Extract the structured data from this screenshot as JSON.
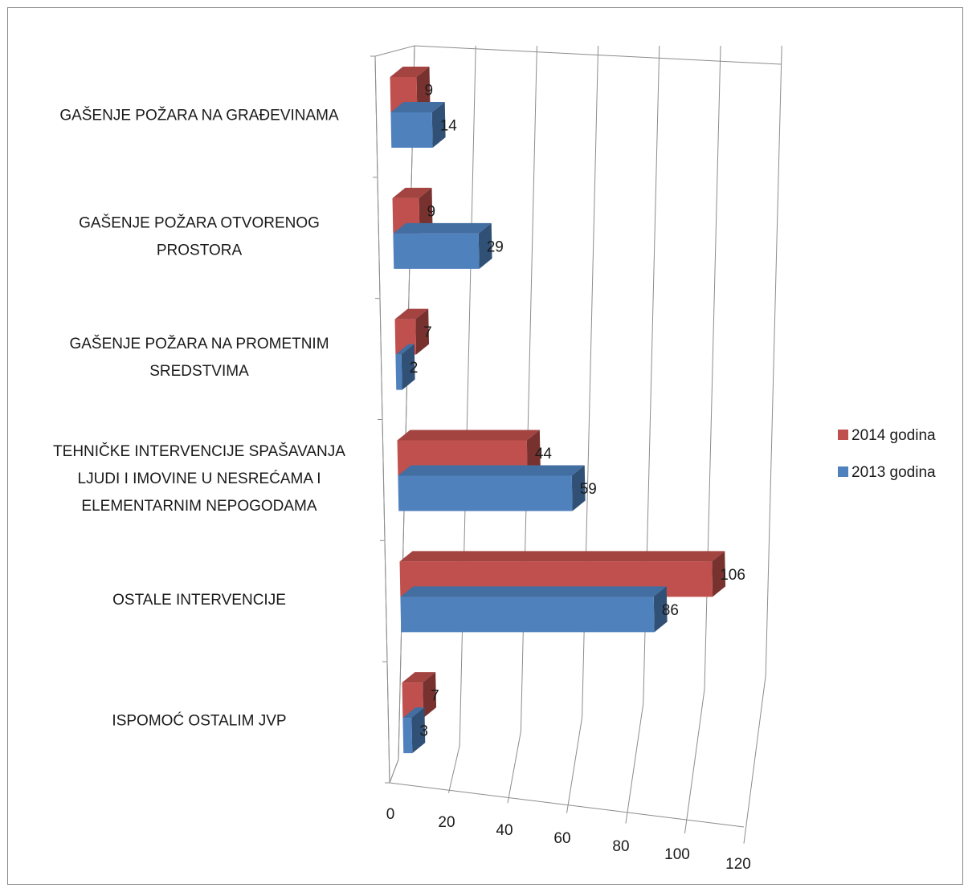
{
  "chart_data": {
    "type": "bar",
    "orientation": "horizontal",
    "style": "3d-perspective",
    "categories": [
      "GAŠENJE POŽARA NA GRAĐEVINAMA",
      "GAŠENJE POŽARA OTVORENOG PROSTORA",
      "GAŠENJE POŽARA NA PROMETNIM SREDSTVIMA",
      "TEHNIČKE INTERVENCIJE SPAŠAVANJA LJUDI I IMOVINE U NESREĆAMA I ELEMENTARNIM NEPOGODAMA",
      "OSTALE INTERVENCIJE",
      "ISPOMOĆ OSTALIM JVP"
    ],
    "category_lines": [
      [
        "GAŠENJE POŽARA NA GRAĐEVINAMA"
      ],
      [
        "GAŠENJE POŽARA OTVORENOG",
        "PROSTORA"
      ],
      [
        "GAŠENJE POŽARA NA PROMETNIM",
        "SREDSTVIMA"
      ],
      [
        "TEHNIČKE INTERVENCIJE SPAŠAVANJA",
        "LJUDI I IMOVINE U NESREĆAMA I",
        "ELEMENTARNIM NEPOGODAMA"
      ],
      [
        "OSTALE INTERVENCIJE"
      ],
      [
        "ISPOMOĆ OSTALIM JVP"
      ]
    ],
    "series": [
      {
        "name": "2014 godina",
        "color": "#c0504d",
        "values": [
          9,
          9,
          7,
          44,
          106,
          7
        ]
      },
      {
        "name": "2013 godina",
        "color": "#4f81bd",
        "values": [
          14,
          29,
          2,
          59,
          86,
          3
        ]
      }
    ],
    "xlim": [
      0,
      120
    ],
    "ticks": [
      "0",
      "20",
      "40",
      "60",
      "80",
      "100",
      "120"
    ],
    "title": "",
    "xlabel": "",
    "ylabel": "",
    "grid": true,
    "legend_position": "right"
  }
}
